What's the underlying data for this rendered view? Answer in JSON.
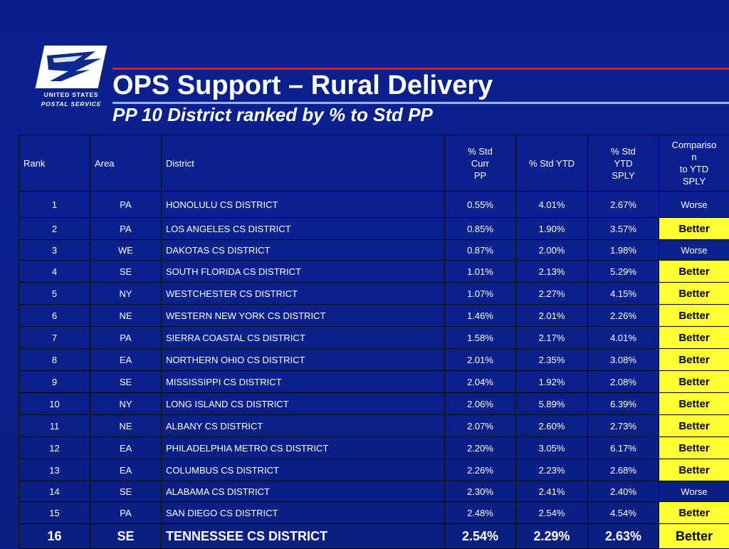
{
  "logo": {
    "line1": "UNITED STATES",
    "line2": "POSTAL SERVICE"
  },
  "title": "OPS Support – Rural Delivery",
  "subtitle": "PP 10 District ranked by % to Std PP",
  "colors": {
    "background": "#0a2190",
    "better_highlight": "#ffff33",
    "rule_red": "#d21f2b",
    "rule_blue": "#9fb0ff"
  },
  "table": {
    "headers": {
      "rank": "Rank",
      "area": "Area",
      "district": "District",
      "std_curr": "% Std\n      Curr\n      PP",
      "std_ytd": "% Std YTD",
      "std_ytd_sply": "% Std\n      YTD\n      SPLY",
      "comparison": "Compariso\nn\nto YTD\nSPLY"
    },
    "rows": [
      {
        "rank": "1",
        "area": "PA",
        "district": "HONOLULU CS DISTRICT",
        "curr": "0.55%",
        "ytd": "4.01%",
        "sply": "2.67%",
        "comparison": "Worse"
      },
      {
        "rank": "2",
        "area": "PA",
        "district": "LOS ANGELES CS DISTRICT",
        "curr": "0.85%",
        "ytd": "1.90%",
        "sply": "3.57%",
        "comparison": "Better"
      },
      {
        "rank": "3",
        "area": "WE",
        "district": "DAKOTAS CS DISTRICT",
        "curr": "0.87%",
        "ytd": "2.00%",
        "sply": "1.98%",
        "comparison": "Worse"
      },
      {
        "rank": "4",
        "area": "SE",
        "district": "SOUTH FLORIDA CS DISTRICT",
        "curr": "1.01%",
        "ytd": "2.13%",
        "sply": "5.29%",
        "comparison": "Better"
      },
      {
        "rank": "5",
        "area": "NY",
        "district": "WESTCHESTER CS DISTRICT",
        "curr": "1.07%",
        "ytd": "2.27%",
        "sply": "4.15%",
        "comparison": "Better"
      },
      {
        "rank": "6",
        "area": "NE",
        "district": "WESTERN NEW YORK CS DISTRICT",
        "curr": "1.46%",
        "ytd": "2.01%",
        "sply": "2.26%",
        "comparison": "Better"
      },
      {
        "rank": "7",
        "area": "PA",
        "district": "SIERRA COASTAL CS DISTRICT",
        "curr": "1.58%",
        "ytd": "2.17%",
        "sply": "4.01%",
        "comparison": "Better"
      },
      {
        "rank": "8",
        "area": "EA",
        "district": "NORTHERN OHIO CS DISTRICT",
        "curr": "2.01%",
        "ytd": "2.35%",
        "sply": "3.08%",
        "comparison": "Better"
      },
      {
        "rank": "9",
        "area": "SE",
        "district": "MISSISSIPPI CS DISTRICT",
        "curr": "2.04%",
        "ytd": "1.92%",
        "sply": "2.08%",
        "comparison": "Better"
      },
      {
        "rank": "10",
        "area": "NY",
        "district": "LONG ISLAND CS DISTRICT",
        "curr": "2.06%",
        "ytd": "5.89%",
        "sply": "6.39%",
        "comparison": "Better"
      },
      {
        "rank": "11",
        "area": "NE",
        "district": "ALBANY CS DISTRICT",
        "curr": "2.07%",
        "ytd": "2.60%",
        "sply": "2.73%",
        "comparison": "Better"
      },
      {
        "rank": "12",
        "area": "EA",
        "district": "PHILADELPHIA METRO CS DISTRICT",
        "curr": "2.20%",
        "ytd": "3.05%",
        "sply": "6.17%",
        "comparison": "Better"
      },
      {
        "rank": "13",
        "area": "EA",
        "district": "COLUMBUS CS DISTRICT",
        "curr": "2.26%",
        "ytd": "2.23%",
        "sply": "2.68%",
        "comparison": "Better"
      },
      {
        "rank": "14",
        "area": "SE",
        "district": "ALABAMA CS DISTRICT",
        "curr": "2.30%",
        "ytd": "2.41%",
        "sply": "2.40%",
        "comparison": "Worse"
      },
      {
        "rank": "15",
        "area": "PA",
        "district": "SAN DIEGO CS DISTRICT",
        "curr": "2.48%",
        "ytd": "2.54%",
        "sply": "4.54%",
        "comparison": "Better"
      },
      {
        "rank": "16",
        "area": "SE",
        "district": "TENNESSEE CS DISTRICT",
        "curr": "2.54%",
        "ytd": "2.29%",
        "sply": "2.63%",
        "comparison": "Better"
      }
    ]
  }
}
